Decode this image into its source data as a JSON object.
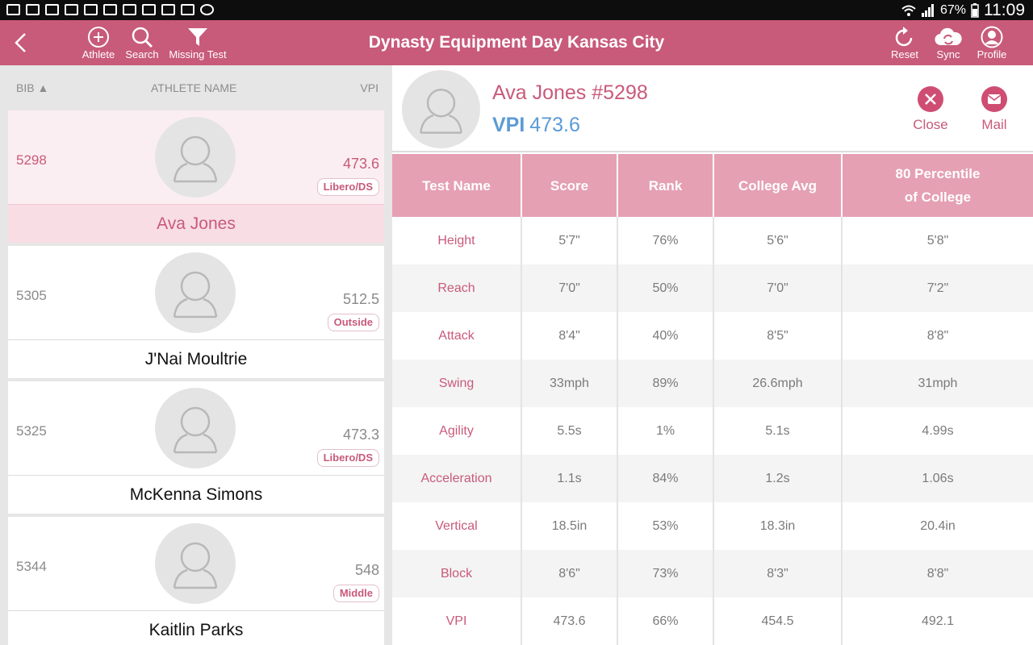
{
  "status_bar": {
    "battery": "67%",
    "time": "11:09"
  },
  "toolbar": {
    "title": "Dynasty Equipment Day Kansas City",
    "athlete_label": "Athlete",
    "search_label": "Search",
    "missing_test_label": "Missing Test",
    "reset_label": "Reset",
    "sync_label": "Sync",
    "profile_label": "Profile"
  },
  "list_header": {
    "bib": "BIB ▲",
    "name": "ATHLETE NAME",
    "vpi": "VPI"
  },
  "athletes": [
    {
      "bib": "5298",
      "name": "Ava Jones",
      "vpi": "473.6",
      "position": "Libero/DS"
    },
    {
      "bib": "5305",
      "name": "J'Nai Moultrie",
      "vpi": "512.5",
      "position": "Outside"
    },
    {
      "bib": "5325",
      "name": "McKenna Simons",
      "vpi": "473.3",
      "position": "Libero/DS"
    },
    {
      "bib": "5344",
      "name": "Kaitlin Parks",
      "vpi": "548",
      "position": "Middle"
    }
  ],
  "selected_index": 0,
  "detail": {
    "name": "Ava Jones #5298",
    "vpi_label": "VPI",
    "vpi_value": "473.6",
    "close_label": "Close",
    "mail_label": "Mail"
  },
  "table": {
    "headers": [
      "Test Name",
      "Score",
      "Rank",
      "College Avg",
      "80 Percentile\nof College"
    ],
    "rows": [
      [
        "Height",
        "5'7\"",
        "76%",
        "5'6\"",
        "5'8\""
      ],
      [
        "Reach",
        "7'0\"",
        "50%",
        "7'0\"",
        "7'2\""
      ],
      [
        "Attack",
        "8'4\"",
        "40%",
        "8'5\"",
        "8'8\""
      ],
      [
        "Swing",
        "33mph",
        "89%",
        "26.6mph",
        "31mph"
      ],
      [
        "Agility",
        "5.5s",
        "1%",
        "5.1s",
        "4.99s"
      ],
      [
        "Acceleration",
        "1.1s",
        "84%",
        "1.2s",
        "1.06s"
      ],
      [
        "Vertical",
        "18.5in",
        "53%",
        "18.3in",
        "20.4in"
      ],
      [
        "Block",
        "8'6\"",
        "73%",
        "8'3\"",
        "8'8\""
      ],
      [
        "VPI",
        "473.6",
        "66%",
        "454.5",
        "492.1"
      ]
    ]
  },
  "colors": {
    "brand": "#c85a7a",
    "table_header": "#e5a0b3",
    "vpi_blue": "#5b9bd6"
  }
}
